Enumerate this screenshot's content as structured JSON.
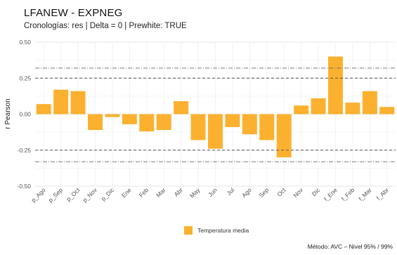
{
  "chart_data": {
    "type": "bar",
    "title": "LFANEW - EXPNEG",
    "subtitle": "Cronologías: res | Delta = 0 | Prewhite: TRUE",
    "ylabel": "r Pearson",
    "xlabel": "",
    "categories": [
      "p_Ago",
      "p_Sep",
      "p_Oct",
      "p_Nov",
      "p_Dic",
      "Ene",
      "Feb",
      "Mar",
      "Abr",
      "May",
      "Jun",
      "Jul",
      "Ago",
      "Sep",
      "Oct",
      "Nov",
      "Dic",
      "f_Ene",
      "f_Feb",
      "f_Mar",
      "f_Abr"
    ],
    "series": [
      {
        "name": "Temperatura media",
        "color": "#fbb12f",
        "values": [
          0.07,
          0.17,
          0.16,
          -0.11,
          -0.02,
          -0.07,
          -0.12,
          -0.11,
          0.09,
          -0.18,
          -0.24,
          -0.09,
          -0.14,
          -0.18,
          -0.3,
          0.06,
          0.11,
          0.4,
          0.08,
          0.16,
          0.05
        ]
      }
    ],
    "ylim": [
      -0.5,
      0.5
    ],
    "yticks": [
      -0.5,
      -0.25,
      0.0,
      0.25,
      0.5
    ],
    "ytick_labels": [
      "-0.50",
      "-0.25",
      "0.00",
      "0.25",
      "0.50"
    ],
    "reference_lines": {
      "dashed": [
        0.25,
        -0.25
      ],
      "dotdash": [
        0.32,
        -0.33
      ]
    },
    "grid": true,
    "legend_position": "bottom",
    "caption": "Método: AVC – Nivel 95% / 99%"
  }
}
